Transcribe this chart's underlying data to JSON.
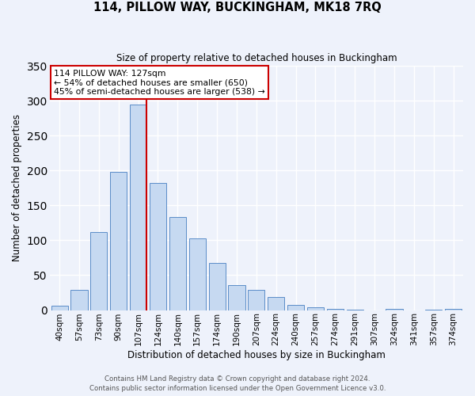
{
  "title": "114, PILLOW WAY, BUCKINGHAM, MK18 7RQ",
  "subtitle": "Size of property relative to detached houses in Buckingham",
  "xlabel": "Distribution of detached houses by size in Buckingham",
  "ylabel": "Number of detached properties",
  "bar_labels": [
    "40sqm",
    "57sqm",
    "73sqm",
    "90sqm",
    "107sqm",
    "124sqm",
    "140sqm",
    "157sqm",
    "174sqm",
    "190sqm",
    "207sqm",
    "224sqm",
    "240sqm",
    "257sqm",
    "274sqm",
    "291sqm",
    "307sqm",
    "324sqm",
    "341sqm",
    "357sqm",
    "374sqm"
  ],
  "bar_values": [
    6,
    29,
    112,
    198,
    295,
    182,
    133,
    103,
    68,
    36,
    29,
    19,
    7,
    4,
    2,
    1,
    0,
    2,
    0,
    1,
    2
  ],
  "bar_color": "#c6d9f1",
  "bar_edgecolor": "#5b8dc8",
  "ylim": [
    0,
    350
  ],
  "yticks": [
    0,
    50,
    100,
    150,
    200,
    250,
    300,
    350
  ],
  "vline_between_indices": [
    4,
    5
  ],
  "marker_label_line1": "114 PILLOW WAY: 127sqm",
  "marker_label_line2": "← 54% of detached houses are smaller (650)",
  "marker_label_line3": "45% of semi-detached houses are larger (538) →",
  "vline_color": "#cc0000",
  "annotation_box_edgecolor": "#cc0000",
  "footer_line1": "Contains HM Land Registry data © Crown copyright and database right 2024.",
  "footer_line2": "Contains public sector information licensed under the Open Government Licence v3.0.",
  "background_color": "#eef2fb",
  "grid_color": "#dde4f0"
}
